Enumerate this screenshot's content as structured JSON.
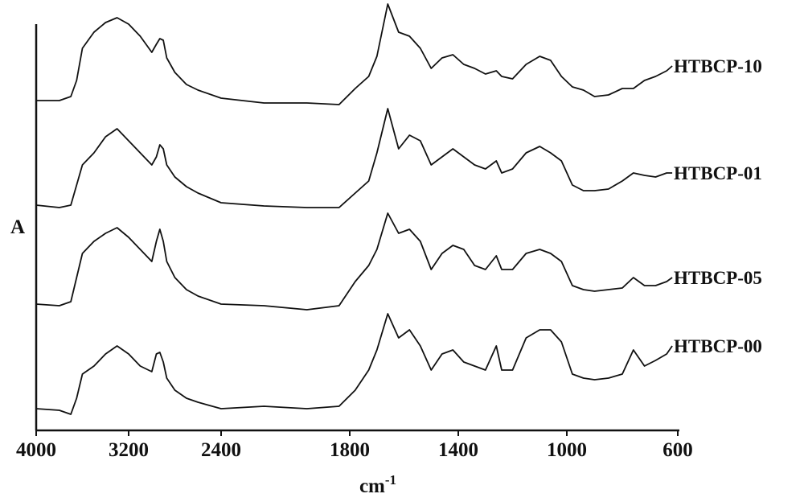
{
  "chart_data": {
    "type": "line",
    "x_label": "cm",
    "x_label_sup": "-1",
    "y_label": "A",
    "xlim": [
      4000,
      600
    ],
    "xticks": [
      4000,
      3200,
      2400,
      1800,
      1400,
      1000,
      600
    ],
    "ylim": [
      0,
      530
    ],
    "x": [
      4000,
      3800,
      3700,
      3650,
      3600,
      3500,
      3400,
      3300,
      3200,
      3100,
      3000,
      2960,
      2930,
      2900,
      2870,
      2800,
      2700,
      2600,
      2400,
      2200,
      2000,
      1850,
      1780,
      1730,
      1700,
      1660,
      1620,
      1580,
      1540,
      1500,
      1460,
      1420,
      1380,
      1340,
      1300,
      1260,
      1240,
      1200,
      1150,
      1100,
      1060,
      1020,
      980,
      940,
      900,
      850,
      800,
      760,
      720,
      680,
      640,
      620
    ],
    "series": [
      {
        "name": "HTBCP-10",
        "color": "#111111",
        "values": [
          410,
          410,
          415,
          435,
          475,
          495,
          507,
          513,
          505,
          490,
          470,
          480,
          487,
          485,
          463,
          445,
          430,
          423,
          413,
          407,
          407,
          405,
          425,
          440,
          465,
          530,
          495,
          490,
          475,
          450,
          463,
          467,
          455,
          450,
          443,
          447,
          440,
          437,
          455,
          465,
          460,
          440,
          427,
          423,
          415,
          417,
          425,
          425,
          435,
          440,
          447,
          453
        ]
      },
      {
        "name": "HTBCP-01",
        "color": "#111111",
        "values": [
          280,
          277,
          280,
          305,
          330,
          345,
          365,
          375,
          360,
          345,
          330,
          340,
          355,
          350,
          330,
          315,
          303,
          295,
          283,
          279,
          277,
          277,
          295,
          310,
          345,
          400,
          350,
          367,
          360,
          330,
          340,
          350,
          340,
          330,
          325,
          335,
          320,
          325,
          345,
          353,
          345,
          335,
          305,
          298,
          298,
          300,
          310,
          320,
          317,
          315,
          320,
          320
        ]
      },
      {
        "name": "HTBCP-05",
        "color": "#111111",
        "values": [
          157,
          155,
          160,
          190,
          220,
          235,
          245,
          252,
          240,
          225,
          210,
          235,
          250,
          235,
          210,
          190,
          175,
          167,
          157,
          155,
          150,
          155,
          185,
          205,
          225,
          270,
          245,
          250,
          235,
          200,
          220,
          230,
          225,
          205,
          200,
          217,
          200,
          200,
          220,
          225,
          220,
          210,
          180,
          175,
          173,
          175,
          177,
          190,
          180,
          180,
          185,
          190
        ]
      },
      {
        "name": "HTBCP-00",
        "color": "#111111",
        "values": [
          27,
          25,
          20,
          40,
          70,
          80,
          95,
          105,
          95,
          80,
          73,
          95,
          97,
          85,
          65,
          50,
          40,
          35,
          27,
          30,
          27,
          30,
          50,
          75,
          100,
          145,
          115,
          125,
          105,
          75,
          95,
          100,
          85,
          80,
          75,
          105,
          75,
          75,
          115,
          125,
          125,
          110,
          70,
          65,
          63,
          65,
          70,
          100,
          80,
          87,
          95,
          105
        ]
      }
    ]
  }
}
